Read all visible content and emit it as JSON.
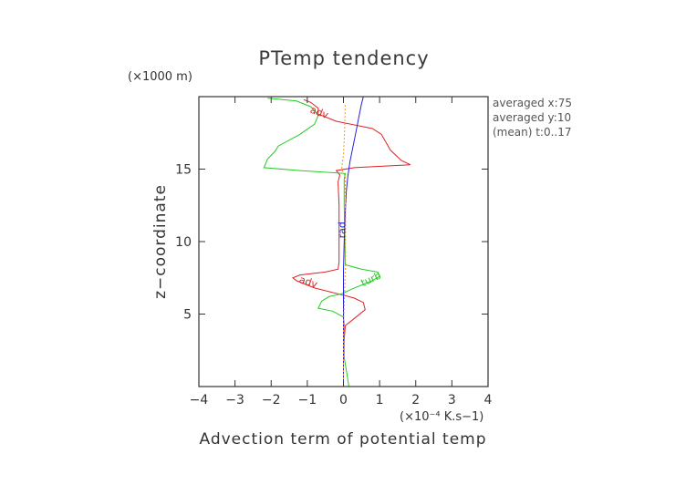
{
  "chart_data": {
    "type": "line",
    "title": "PTemp tendency",
    "xlabel": "Advection term of potential temp",
    "x_unit": "(×10⁻⁴ K.s−1)",
    "ylabel": "z−coordinate",
    "y_unit": "(×1000 m)",
    "xlim": [
      -4,
      4
    ],
    "ylim": [
      0,
      20
    ],
    "xticks": [
      "−4",
      "−3",
      "−2",
      "−1",
      "0",
      "1",
      "2",
      "3",
      "4"
    ],
    "yticks": [
      "5",
      "10",
      "15"
    ],
    "ytick_values": [
      5,
      10,
      15
    ],
    "xtick_values": [
      -4,
      -3,
      -2,
      -1,
      0,
      1,
      2,
      3,
      4
    ],
    "grid": false,
    "annotations": [
      "averaged  x:75",
      "averaged  y:10",
      "(mean) t:0..17"
    ],
    "series": [
      {
        "name": "adv",
        "color": "#dd2222",
        "points": [
          [
            0,
            0.3
          ],
          [
            0,
            2.5
          ],
          [
            0.05,
            4.2
          ],
          [
            0.3,
            4.7
          ],
          [
            0.6,
            5.3
          ],
          [
            0.55,
            5.8
          ],
          [
            0.3,
            6.1
          ],
          [
            0,
            6.3
          ],
          [
            -0.8,
            6.8
          ],
          [
            -1.3,
            7.3
          ],
          [
            -1.4,
            7.5
          ],
          [
            -1.2,
            7.7
          ],
          [
            -0.5,
            7.9
          ],
          [
            -0.15,
            8.1
          ],
          [
            -0.12,
            8.6
          ],
          [
            -0.12,
            12.5
          ],
          [
            -0.15,
            14.1
          ],
          [
            -0.1,
            14.6
          ],
          [
            -0.2,
            14.9
          ],
          [
            0.3,
            15.1
          ],
          [
            1.1,
            15.2
          ],
          [
            1.85,
            15.3
          ],
          [
            1.6,
            15.6
          ],
          [
            1.3,
            16.3
          ],
          [
            1.05,
            17.4
          ],
          [
            0.8,
            17.8
          ],
          [
            -0.2,
            18.3
          ],
          [
            -0.7,
            18.8
          ],
          [
            -0.7,
            19.2
          ],
          [
            -0.9,
            19.6
          ],
          [
            -1.1,
            19.8
          ]
        ]
      },
      {
        "name": "turb",
        "color": "#22cc22",
        "points": [
          [
            0.15,
            0
          ],
          [
            0.1,
            0.8
          ],
          [
            0.02,
            2
          ],
          [
            0.02,
            4.3
          ],
          [
            0,
            4.8
          ],
          [
            -0.3,
            5.2
          ],
          [
            -0.7,
            5.4
          ],
          [
            -0.6,
            5.9
          ],
          [
            -0.4,
            6.2
          ],
          [
            -0.05,
            6.4
          ],
          [
            0.3,
            6.8
          ],
          [
            0.8,
            7.3
          ],
          [
            1,
            7.6
          ],
          [
            0.95,
            7.9
          ],
          [
            0.5,
            8.1
          ],
          [
            0.05,
            8.4
          ],
          [
            0.02,
            12.5
          ],
          [
            0.02,
            14.3
          ],
          [
            0.05,
            14.7
          ],
          [
            -1.2,
            14.9
          ],
          [
            -2.2,
            15.1
          ],
          [
            -2.1,
            15.7
          ],
          [
            -1.9,
            16.2
          ],
          [
            -1.8,
            16.6
          ],
          [
            -1.2,
            17.4
          ],
          [
            -0.8,
            18.1
          ],
          [
            -0.7,
            18.7
          ],
          [
            -0.9,
            19.3
          ],
          [
            -1.3,
            19.7
          ],
          [
            -2.1,
            19.9
          ]
        ]
      },
      {
        "name": "rad",
        "color": "#2222dd",
        "points": [
          [
            0,
            0
          ],
          [
            0,
            2
          ],
          [
            0,
            4
          ],
          [
            0,
            6
          ],
          [
            0,
            8
          ],
          [
            0.02,
            10
          ],
          [
            0.05,
            12
          ],
          [
            0.08,
            13.5
          ],
          [
            0.12,
            14.5
          ],
          [
            0.18,
            15.5
          ],
          [
            0.26,
            16.5
          ],
          [
            0.34,
            17.5
          ],
          [
            0.42,
            18.5
          ],
          [
            0.5,
            19.5
          ],
          [
            0.55,
            20
          ]
        ]
      },
      {
        "name": "",
        "color": "#ee9922",
        "points": [
          [
            0,
            0
          ],
          [
            0,
            4
          ],
          [
            0.05,
            8
          ],
          [
            0.06,
            12
          ],
          [
            0.05,
            14.5
          ],
          [
            -0.05,
            15
          ],
          [
            0,
            16
          ],
          [
            0.03,
            17.5
          ],
          [
            0.05,
            19.5
          ]
        ]
      }
    ],
    "curve_labels": [
      {
        "text": "adv",
        "series": "adv"
      },
      {
        "text": "adv",
        "series": "adv"
      },
      {
        "text": "turb",
        "series": "turb"
      },
      {
        "text": "rad",
        "series": "rad"
      }
    ]
  }
}
